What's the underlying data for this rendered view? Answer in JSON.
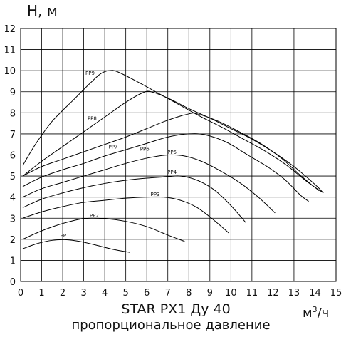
{
  "chart_data": {
    "type": "line",
    "title": "STAR PX1 Ду 40",
    "subtitle": "пропорциональное давление",
    "ylabel": "H, м",
    "xlabel_base": "м",
    "xlabel_sup": "3",
    "xlabel_tail": "/ч",
    "xlim": [
      0,
      15
    ],
    "ylim": [
      0,
      12
    ],
    "grid": true,
    "xticks": [
      "0",
      "1",
      "2",
      "3",
      "4",
      "5",
      "6",
      "7",
      "8",
      "9",
      "10",
      "11",
      "12",
      "13",
      "14",
      "15"
    ],
    "yticks": [
      "0",
      "1",
      "2",
      "3",
      "4",
      "5",
      "6",
      "7",
      "8",
      "9",
      "10",
      "11",
      "12"
    ],
    "series": [
      {
        "name": "PP1",
        "points": [
          [
            0.1,
            1.55
          ],
          [
            0.8,
            1.8
          ],
          [
            1.5,
            1.95
          ],
          [
            2.1,
            1.98
          ],
          [
            2.8,
            1.9
          ],
          [
            3.6,
            1.72
          ],
          [
            4.4,
            1.52
          ],
          [
            5.2,
            1.38
          ]
        ]
      },
      {
        "name": "PP2",
        "points": [
          [
            0.1,
            2.0
          ],
          [
            1.0,
            2.4
          ],
          [
            2.0,
            2.75
          ],
          [
            3.0,
            2.98
          ],
          [
            4.0,
            2.98
          ],
          [
            5.0,
            2.85
          ],
          [
            6.0,
            2.6
          ],
          [
            7.0,
            2.2
          ],
          [
            7.8,
            1.9
          ]
        ]
      },
      {
        "name": "PP3",
        "points": [
          [
            0.1,
            3.0
          ],
          [
            1.0,
            3.3
          ],
          [
            2.0,
            3.55
          ],
          [
            3.0,
            3.75
          ],
          [
            4.0,
            3.85
          ],
          [
            5.0,
            3.95
          ],
          [
            6.0,
            4.0
          ],
          [
            6.8,
            4.0
          ],
          [
            7.6,
            3.85
          ],
          [
            8.4,
            3.5
          ],
          [
            9.2,
            2.9
          ],
          [
            9.9,
            2.3
          ]
        ]
      },
      {
        "name": "PP4",
        "points": [
          [
            0.1,
            3.5
          ],
          [
            1.0,
            3.9
          ],
          [
            2.0,
            4.2
          ],
          [
            3.0,
            4.45
          ],
          [
            4.0,
            4.65
          ],
          [
            5.0,
            4.8
          ],
          [
            6.0,
            4.9
          ],
          [
            7.0,
            4.97
          ],
          [
            7.6,
            5.0
          ],
          [
            8.4,
            4.8
          ],
          [
            9.2,
            4.35
          ],
          [
            10.0,
            3.6
          ],
          [
            10.7,
            2.8
          ]
        ]
      },
      {
        "name": "PP5",
        "points": [
          [
            0.1,
            4.0
          ],
          [
            1.0,
            4.4
          ],
          [
            2.0,
            4.7
          ],
          [
            3.0,
            5.0
          ],
          [
            4.0,
            5.3
          ],
          [
            5.0,
            5.6
          ],
          [
            6.0,
            5.85
          ],
          [
            7.0,
            6.0
          ],
          [
            7.8,
            5.95
          ],
          [
            8.6,
            5.7
          ],
          [
            9.4,
            5.3
          ],
          [
            10.4,
            4.7
          ],
          [
            11.3,
            4.0
          ],
          [
            12.1,
            3.25
          ]
        ]
      },
      {
        "name": "PP6",
        "points": [
          [
            0.1,
            4.5
          ],
          [
            1.0,
            4.95
          ],
          [
            2.0,
            5.3
          ],
          [
            3.0,
            5.6
          ],
          [
            4.0,
            5.95
          ],
          [
            5.0,
            6.25
          ],
          [
            6.0,
            6.55
          ],
          [
            7.0,
            6.85
          ],
          [
            8.0,
            7.0
          ],
          [
            8.8,
            6.95
          ],
          [
            9.8,
            6.6
          ],
          [
            10.8,
            6.0
          ],
          [
            11.8,
            5.4
          ],
          [
            12.6,
            4.8
          ],
          [
            13.3,
            4.1
          ],
          [
            13.7,
            3.8
          ]
        ]
      },
      {
        "name": "PP7",
        "points": [
          [
            0.1,
            5.0
          ],
          [
            1.0,
            5.45
          ],
          [
            2.0,
            5.8
          ],
          [
            3.0,
            6.15
          ],
          [
            4.0,
            6.5
          ],
          [
            5.0,
            6.85
          ],
          [
            6.0,
            7.25
          ],
          [
            7.0,
            7.65
          ],
          [
            8.0,
            7.95
          ],
          [
            8.4,
            7.95
          ],
          [
            9.4,
            7.6
          ],
          [
            10.4,
            7.1
          ],
          [
            11.4,
            6.55
          ],
          [
            12.4,
            5.85
          ],
          [
            13.4,
            4.95
          ],
          [
            14.2,
            4.3
          ]
        ]
      },
      {
        "name": "PP8",
        "points": [
          [
            0.1,
            5.0
          ],
          [
            1.0,
            5.7
          ],
          [
            2.0,
            6.4
          ],
          [
            3.0,
            7.1
          ],
          [
            4.0,
            7.8
          ],
          [
            5.0,
            8.5
          ],
          [
            5.8,
            8.95
          ],
          [
            6.2,
            9.0
          ],
          [
            7.0,
            8.7
          ],
          [
            8.0,
            8.2
          ],
          [
            9.0,
            7.75
          ],
          [
            10.0,
            7.25
          ],
          [
            11.0,
            6.75
          ],
          [
            12.0,
            6.15
          ],
          [
            13.0,
            5.45
          ],
          [
            14.0,
            4.6
          ],
          [
            14.35,
            4.25
          ]
        ]
      },
      {
        "name": "PP9",
        "points": [
          [
            0.1,
            5.5
          ],
          [
            0.7,
            6.5
          ],
          [
            1.5,
            7.6
          ],
          [
            2.5,
            8.6
          ],
          [
            3.3,
            9.4
          ],
          [
            3.8,
            9.85
          ],
          [
            4.2,
            10.0
          ],
          [
            4.6,
            9.95
          ],
          [
            5.6,
            9.45
          ],
          [
            6.6,
            8.9
          ],
          [
            7.6,
            8.35
          ],
          [
            8.6,
            7.8
          ],
          [
            9.6,
            7.3
          ],
          [
            10.6,
            6.75
          ],
          [
            11.6,
            6.2
          ],
          [
            12.6,
            5.55
          ],
          [
            13.6,
            4.75
          ],
          [
            14.4,
            4.2
          ]
        ]
      }
    ],
    "curve_labels": [
      {
        "text": "PP1",
        "x": 2.1,
        "y": 2.1
      },
      {
        "text": "PP2",
        "x": 3.5,
        "y": 3.05
      },
      {
        "text": "PP3",
        "x": 6.4,
        "y": 4.05
      },
      {
        "text": "PP4",
        "x": 7.2,
        "y": 5.1
      },
      {
        "text": "PP5",
        "x": 7.2,
        "y": 6.05
      },
      {
        "text": "PP6",
        "x": 5.9,
        "y": 6.2
      },
      {
        "text": "PP7",
        "x": 4.4,
        "y": 6.3
      },
      {
        "text": "PP8",
        "x": 3.4,
        "y": 7.65
      },
      {
        "text": "PP9",
        "x": 3.3,
        "y": 9.8
      }
    ]
  }
}
